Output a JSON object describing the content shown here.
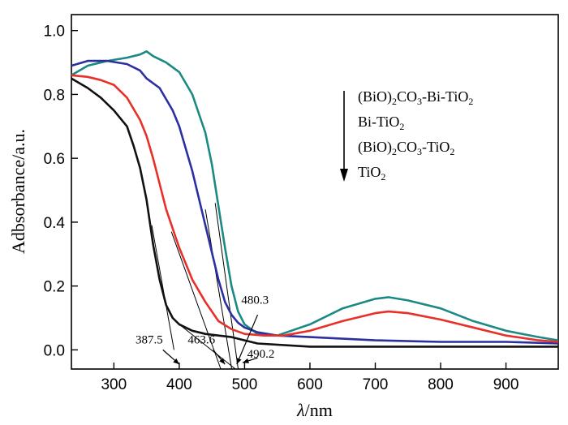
{
  "chart_data": {
    "type": "line",
    "xlabel": "λ/nm",
    "xlabel_italic": "λ",
    "xlabel_unit": "/nm",
    "ylabel": "Adbsorbance/a.u.",
    "xlim": [
      235,
      980
    ],
    "ylim": [
      -0.06,
      1.05
    ],
    "xticks": [
      300,
      400,
      500,
      600,
      700,
      800,
      900
    ],
    "yticks": [
      0.0,
      0.2,
      0.4,
      0.6,
      0.8,
      1.0
    ],
    "ytick_labels": [
      "0.0",
      "0.2",
      "0.4",
      "0.6",
      "0.8",
      "1.0"
    ],
    "grid": false,
    "legend_entries": [
      {
        "parts": [
          [
            "(BiO)",
            false
          ],
          [
            "2",
            true
          ],
          [
            "CO",
            false
          ],
          [
            "3",
            true
          ],
          [
            "-Bi-TiO",
            false
          ],
          [
            "2",
            true
          ]
        ]
      },
      {
        "parts": [
          [
            "Bi-TiO",
            false
          ],
          [
            "2",
            true
          ]
        ]
      },
      {
        "parts": [
          [
            "(BiO)",
            false
          ],
          [
            "2",
            true
          ],
          [
            "CO",
            false
          ],
          [
            "3",
            true
          ],
          [
            "-TiO",
            false
          ],
          [
            "2",
            true
          ]
        ]
      },
      {
        "parts": [
          [
            "TiO",
            false
          ],
          [
            "2",
            true
          ]
        ]
      }
    ],
    "legend_arrow": "down",
    "series": [
      {
        "color": "#1b8a84",
        "x": [
          235,
          260,
          290,
          320,
          340,
          350,
          360,
          380,
          400,
          420,
          440,
          450,
          460,
          470,
          480,
          490,
          500,
          520,
          550,
          600,
          650,
          700,
          720,
          750,
          800,
          850,
          900,
          950,
          980
        ],
        "y": [
          0.86,
          0.89,
          0.905,
          0.915,
          0.925,
          0.935,
          0.92,
          0.9,
          0.87,
          0.8,
          0.68,
          0.58,
          0.45,
          0.32,
          0.2,
          0.12,
          0.08,
          0.05,
          0.045,
          0.08,
          0.13,
          0.16,
          0.165,
          0.155,
          0.13,
          0.09,
          0.06,
          0.04,
          0.03
        ]
      },
      {
        "color": "#2b2fa0",
        "x": [
          235,
          260,
          290,
          320,
          340,
          350,
          370,
          390,
          400,
          420,
          440,
          460,
          470,
          480,
          490,
          500,
          520,
          550,
          600,
          700,
          800,
          900,
          980
        ],
        "y": [
          0.89,
          0.905,
          0.905,
          0.895,
          0.875,
          0.85,
          0.82,
          0.75,
          0.7,
          0.56,
          0.39,
          0.22,
          0.15,
          0.11,
          0.085,
          0.07,
          0.055,
          0.045,
          0.04,
          0.03,
          0.025,
          0.025,
          0.02
        ]
      },
      {
        "color": "#e8302a",
        "x": [
          235,
          260,
          280,
          300,
          320,
          340,
          350,
          360,
          380,
          400,
          420,
          440,
          460,
          480,
          500,
          530,
          560,
          600,
          650,
          700,
          720,
          750,
          800,
          850,
          900,
          950,
          980
        ],
        "y": [
          0.86,
          0.855,
          0.845,
          0.83,
          0.79,
          0.72,
          0.67,
          0.6,
          0.44,
          0.32,
          0.22,
          0.15,
          0.09,
          0.065,
          0.05,
          0.045,
          0.045,
          0.06,
          0.09,
          0.115,
          0.12,
          0.115,
          0.095,
          0.07,
          0.045,
          0.03,
          0.025
        ]
      },
      {
        "color": "#111111",
        "x": [
          235,
          260,
          280,
          300,
          320,
          330,
          340,
          350,
          360,
          370,
          380,
          390,
          400,
          420,
          440,
          460,
          480,
          500,
          520,
          600,
          700,
          800,
          900,
          980
        ],
        "y": [
          0.85,
          0.82,
          0.79,
          0.75,
          0.7,
          0.64,
          0.57,
          0.47,
          0.33,
          0.22,
          0.14,
          0.1,
          0.08,
          0.06,
          0.05,
          0.045,
          0.04,
          0.03,
          0.02,
          0.01,
          0.01,
          0.01,
          0.01,
          0.01
        ]
      }
    ],
    "tangent_lines": [
      {
        "x": [
          358,
          392
        ],
        "y": [
          0.39,
          0.0
        ]
      },
      {
        "x": [
          388,
          463.6
        ],
        "y": [
          0.37,
          -0.06
        ]
      },
      {
        "x": [
          440,
          480.3
        ],
        "y": [
          0.44,
          -0.06
        ]
      },
      {
        "x": [
          455,
          490.2
        ],
        "y": [
          0.46,
          -0.06
        ]
      },
      {
        "x": [
          400,
          486
        ],
        "y": [
          0.08,
          -0.06
        ]
      }
    ],
    "annotations": [
      {
        "text": "387.5",
        "x": 354,
        "y": 0.02
      },
      {
        "text": "463.6",
        "x": 434,
        "y": 0.02
      },
      {
        "text": "480.3",
        "x": 516,
        "y": 0.145
      },
      {
        "text": "490.2",
        "x": 525,
        "y": -0.025
      }
    ],
    "annotation_arrows": [
      {
        "x": [
          375,
          400
        ],
        "y": 0.0,
        "y2": -0.045
      },
      {
        "x": [
          452,
          470
        ],
        "y": 0.0,
        "y2": -0.045
      },
      {
        "x": [
          520,
          488
        ],
        "y": 0.11,
        "y2": -0.045
      },
      {
        "x": [
          520,
          497
        ],
        "y": -0.025,
        "y2": -0.04
      }
    ]
  }
}
